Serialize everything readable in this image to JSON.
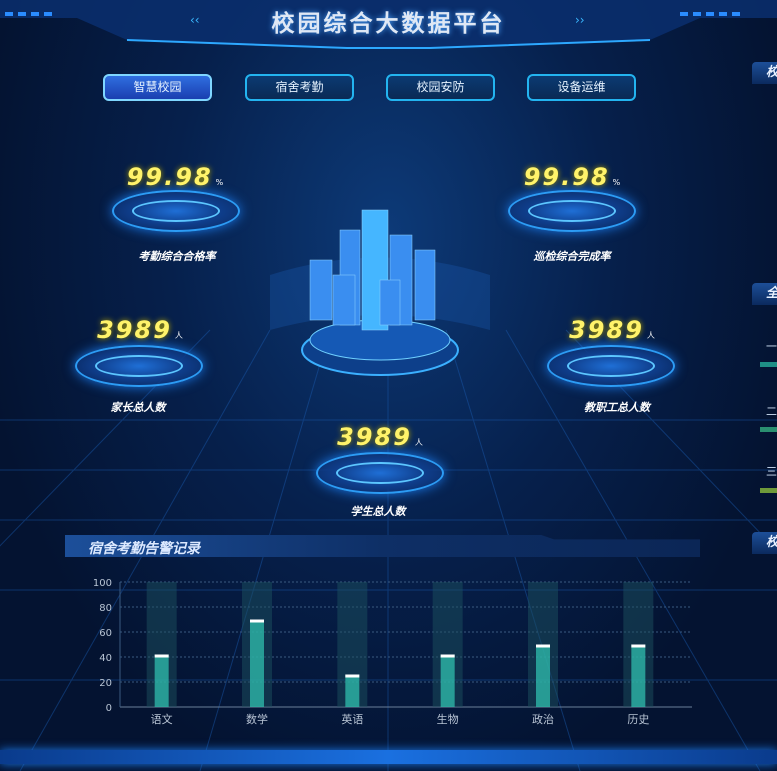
{
  "header": {
    "title": "校园综合大数据平台"
  },
  "tabs": [
    {
      "label": "智慧校园",
      "active": true
    },
    {
      "label": "宿舍考勤",
      "active": false
    },
    {
      "label": "校园安防",
      "active": false
    },
    {
      "label": "设备运维",
      "active": false
    }
  ],
  "stats": {
    "attendance": {
      "value": "99.98",
      "unit": "%",
      "label": "考勤综合合格率"
    },
    "inspection": {
      "value": "99.98",
      "unit": "%",
      "label": "巡检综合完成率"
    },
    "parents": {
      "value": "3989",
      "unit": "人",
      "label": "家长总人数"
    },
    "staff": {
      "value": "3989",
      "unit": "人",
      "label": "教职工总人数"
    },
    "students": {
      "value": "3989",
      "unit": "人",
      "label": "学生总人数"
    }
  },
  "right_panel": {
    "headers": [
      "校",
      "全",
      "校"
    ],
    "rows": [
      "一",
      "二",
      "三"
    ],
    "row_colors": [
      "#1f8f86",
      "#2a8f70",
      "#6f9a3a"
    ]
  },
  "panel": {
    "title": "宿舍考勤告警记录"
  },
  "colors": {
    "accent": "#23b4f0",
    "number": "#fff36a",
    "bar": "#2fbfae"
  },
  "chart_data": {
    "type": "bar",
    "categories": [
      "语文",
      "数学",
      "英语",
      "生物",
      "政治",
      "历史"
    ],
    "values": [
      42,
      70,
      26,
      42,
      50,
      50
    ],
    "ylim": [
      0,
      100
    ],
    "yticks": [
      "0",
      "20",
      "40",
      "60",
      "80",
      "100"
    ],
    "grid": true,
    "background_bars": true
  }
}
